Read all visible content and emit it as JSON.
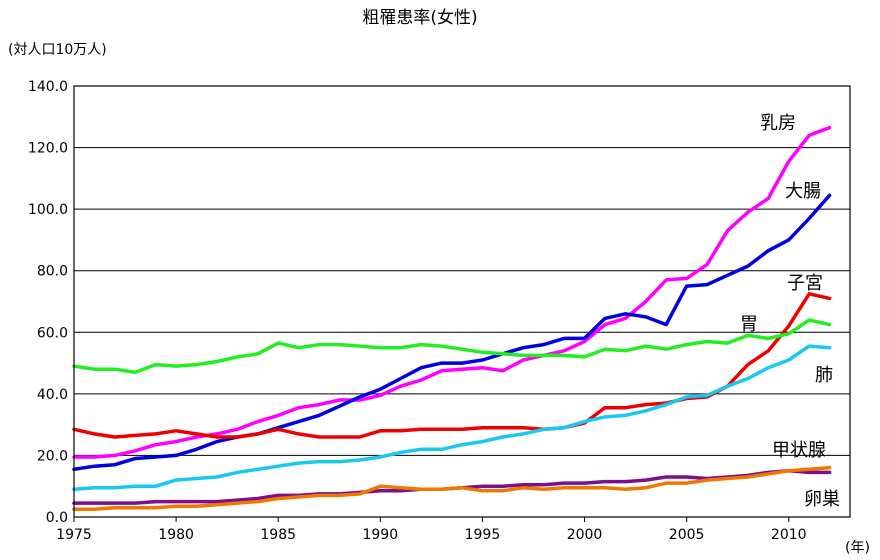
{
  "chart_data": {
    "type": "line",
    "title": "粗罹患率(女性)",
    "ylabel": "(対人口10万人)",
    "xunit": "(年)",
    "ylim": [
      0,
      140
    ],
    "xlim": [
      1975,
      2013
    ],
    "yticks": [
      "0.0",
      "20.0",
      "40.0",
      "60.0",
      "80.0",
      "100.0",
      "120.0",
      "140.0"
    ],
    "xticks": [
      "1975",
      "1980",
      "1985",
      "1990",
      "1995",
      "2000",
      "2005",
      "2010"
    ],
    "grid": true,
    "x": [
      1975,
      1976,
      1977,
      1978,
      1979,
      1980,
      1981,
      1982,
      1983,
      1984,
      1985,
      1986,
      1987,
      1988,
      1989,
      1990,
      1991,
      1992,
      1993,
      1994,
      1995,
      1996,
      1997,
      1998,
      1999,
      2000,
      2001,
      2002,
      2003,
      2004,
      2005,
      2006,
      2007,
      2008,
      2009,
      2010,
      2011,
      2012
    ],
    "series": [
      {
        "name": "乳房",
        "color": "#ff00ff",
        "values": [
          19.5,
          19.5,
          20.0,
          21.5,
          23.5,
          24.5,
          26.0,
          27.0,
          28.5,
          31.0,
          33.0,
          35.5,
          36.5,
          38.0,
          38.0,
          39.5,
          42.5,
          44.5,
          47.5,
          48.0,
          48.5,
          47.5,
          51.0,
          52.5,
          54.0,
          57.0,
          62.5,
          64.5,
          70.0,
          77.0,
          77.5,
          82.0,
          93.0,
          99.0,
          103.5,
          115.5,
          124.0,
          126.5
        ]
      },
      {
        "name": "大腸",
        "color": "#0000e0",
        "values": [
          15.5,
          16.5,
          17.0,
          19.0,
          19.5,
          20.0,
          22.0,
          24.5,
          26.0,
          27.0,
          29.0,
          31.0,
          33.0,
          36.0,
          39.0,
          41.5,
          45.0,
          48.5,
          50.0,
          50.0,
          51.0,
          53.0,
          55.0,
          56.0,
          58.0,
          58.0,
          64.5,
          66.0,
          65.0,
          62.5,
          75.0,
          75.5,
          78.5,
          81.5,
          86.5,
          90.0,
          97.0,
          104.5
        ]
      },
      {
        "name": "子宮",
        "color": "#ee0000",
        "values": [
          28.5,
          27.0,
          26.0,
          26.5,
          27.0,
          28.0,
          27.0,
          26.0,
          26.0,
          27.0,
          28.5,
          27.0,
          26.0,
          26.0,
          26.0,
          28.0,
          28.0,
          28.5,
          28.5,
          28.5,
          29.0,
          29.0,
          29.0,
          28.5,
          29.0,
          30.5,
          35.5,
          35.5,
          36.5,
          37.0,
          38.5,
          39.0,
          42.5,
          49.5,
          54.0,
          62.0,
          72.5,
          71.0
        ]
      },
      {
        "name": "胃",
        "color": "#22ee22",
        "values": [
          49.0,
          48.0,
          48.0,
          47.0,
          49.5,
          49.0,
          49.5,
          50.5,
          52.0,
          53.0,
          56.5,
          55.0,
          56.0,
          56.0,
          55.5,
          55.0,
          55.0,
          56.0,
          55.5,
          54.5,
          53.5,
          53.0,
          52.5,
          52.5,
          52.5,
          52.0,
          54.5,
          54.0,
          55.5,
          54.5,
          56.0,
          57.0,
          56.5,
          59.0,
          58.0,
          59.5,
          64.0,
          62.5
        ]
      },
      {
        "name": "肺",
        "color": "#19c8f0",
        "values": [
          9.0,
          9.5,
          9.5,
          10.0,
          10.0,
          12.0,
          12.5,
          13.0,
          14.5,
          15.5,
          16.5,
          17.5,
          18.0,
          18.0,
          18.5,
          19.5,
          21.0,
          22.0,
          22.0,
          23.5,
          24.5,
          26.0,
          27.0,
          28.5,
          29.0,
          31.0,
          32.5,
          33.0,
          34.5,
          36.5,
          39.0,
          39.5,
          42.5,
          45.0,
          48.5,
          51.0,
          55.5,
          55.0
        ]
      },
      {
        "name": "甲状腺",
        "color": "#7b0f8c",
        "values": [
          4.5,
          4.5,
          4.5,
          4.5,
          5.0,
          5.0,
          5.0,
          5.0,
          5.5,
          6.0,
          7.0,
          7.0,
          7.5,
          7.5,
          8.0,
          8.5,
          8.5,
          9.0,
          9.0,
          9.5,
          10.0,
          10.0,
          10.5,
          10.5,
          11.0,
          11.0,
          11.5,
          11.5,
          12.0,
          13.0,
          13.0,
          12.5,
          13.0,
          13.5,
          14.5,
          15.0,
          14.5,
          14.5
        ]
      },
      {
        "name": "卵巣",
        "color": "#f07800",
        "values": [
          2.5,
          2.5,
          3.0,
          3.0,
          3.0,
          3.5,
          3.5,
          4.0,
          4.5,
          5.0,
          6.0,
          6.5,
          7.0,
          7.0,
          7.5,
          10.0,
          9.5,
          9.0,
          9.0,
          9.5,
          8.5,
          8.5,
          9.5,
          9.0,
          9.5,
          9.5,
          9.5,
          9.0,
          9.5,
          11.0,
          11.0,
          12.0,
          12.5,
          13.0,
          14.0,
          15.0,
          15.5,
          16.0
        ]
      }
    ]
  }
}
